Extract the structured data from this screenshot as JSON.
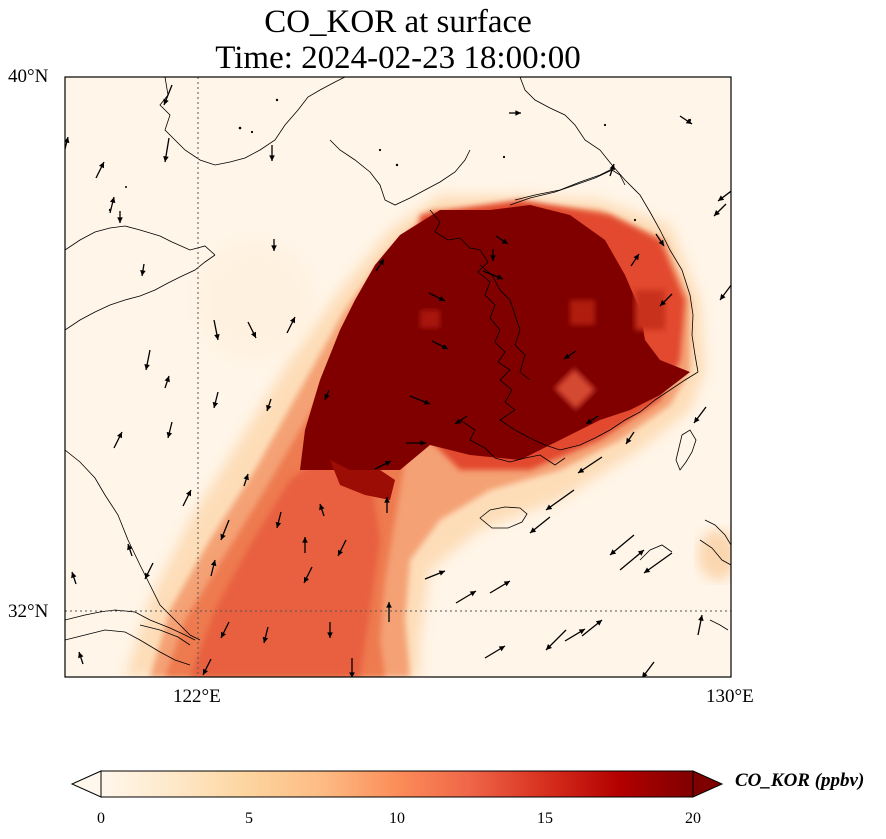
{
  "title": {
    "line1": "CO_KOR at surface",
    "line2": "Time: 2024-02-23 18:00:00"
  },
  "axes": {
    "lat_ticks": [
      "40°N",
      "32°N"
    ],
    "lon_ticks": [
      "122°E",
      "130°E"
    ],
    "lat_range": [
      31,
      40
    ],
    "lon_range": [
      120,
      130
    ],
    "gridlines": "dotted"
  },
  "colorbar": {
    "label": "CO_KOR (ppbv)",
    "ticks": [
      "0",
      "5",
      "10",
      "15",
      "20"
    ],
    "min": 0,
    "max": 20,
    "extend": "both",
    "colormap": "OrRd"
  },
  "colors": {
    "low": "#fff5e8",
    "mid": "#f3835a",
    "high": "#7f0000"
  }
}
